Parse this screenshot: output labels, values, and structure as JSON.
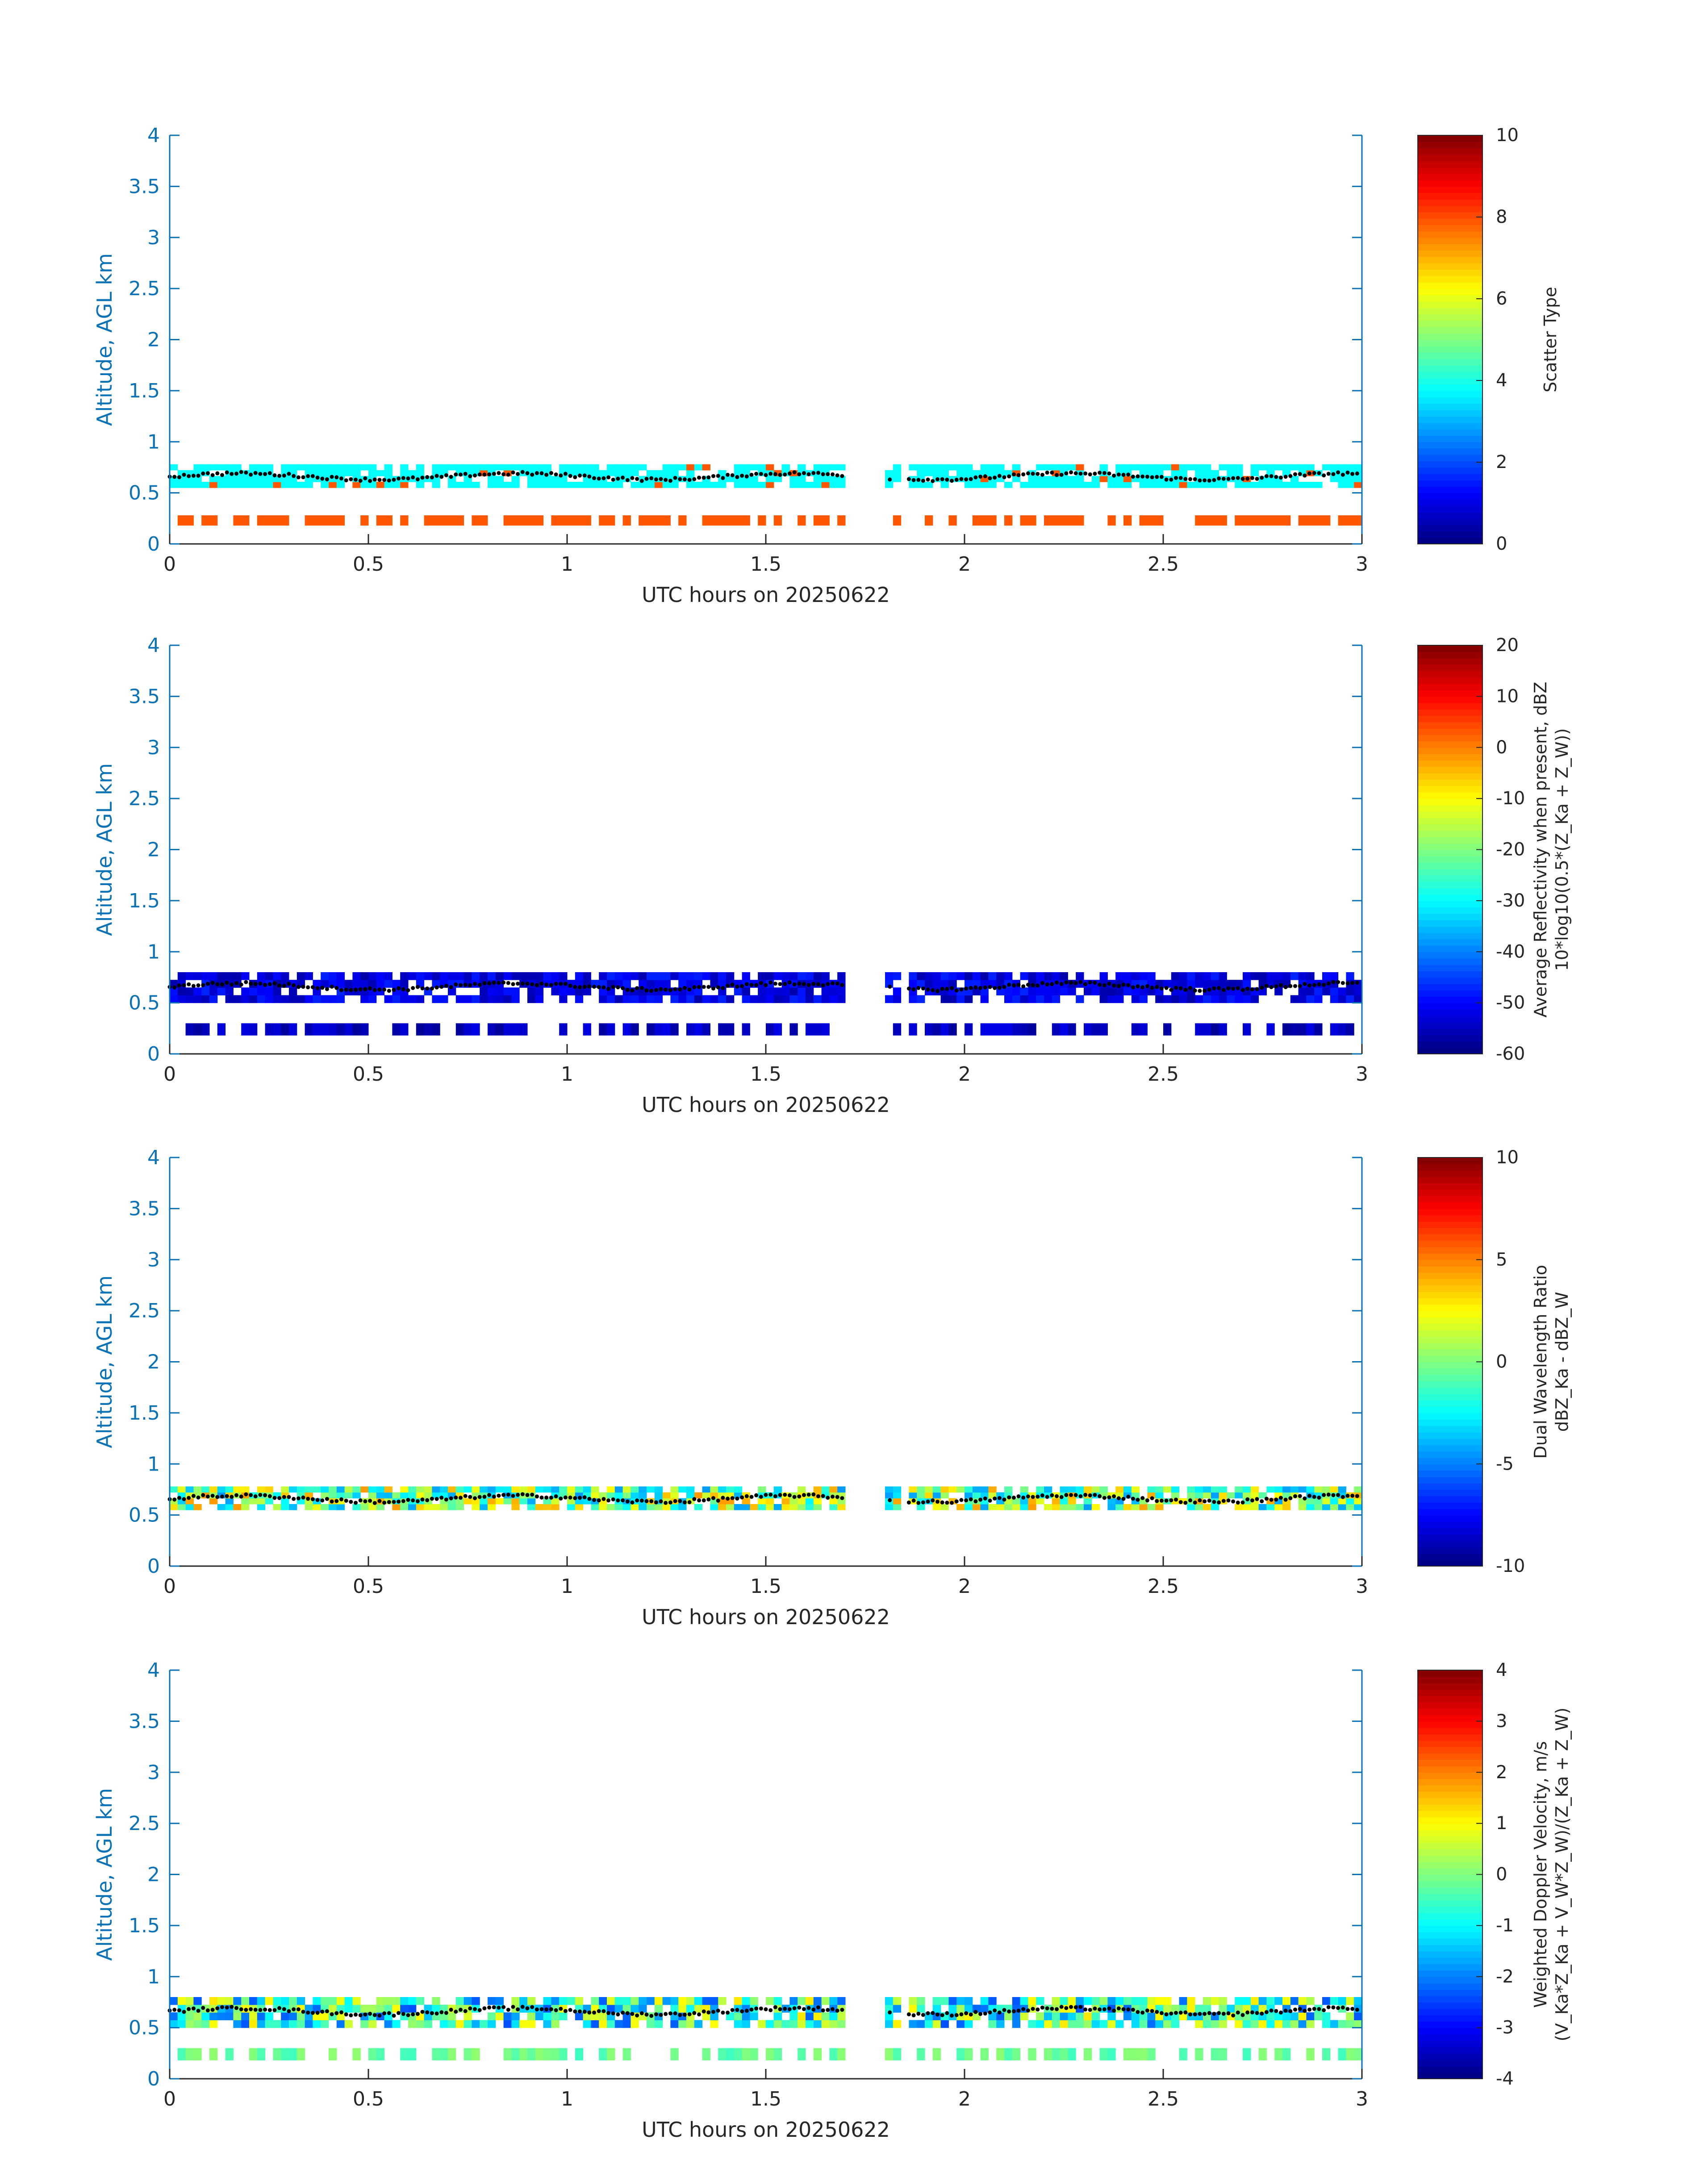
{
  "chart_data": [
    {
      "type": "heatmap",
      "ylabel": "Altitude, AGL km",
      "xlabel": "UTC hours on 20250622",
      "xlim": [
        0,
        3
      ],
      "ylim": [
        0,
        4
      ],
      "x_ticks": [
        "0",
        "0.5",
        "1",
        "1.5",
        "2",
        "2.5",
        "3"
      ],
      "y_ticks": [
        "0",
        "0.5",
        "1",
        "1.5",
        "2",
        "2.5",
        "3",
        "3.5",
        "4"
      ],
      "colorbar": {
        "label_lines": [
          "Scatter Type"
        ],
        "range": [
          0,
          10
        ],
        "ticks": [
          "0",
          "2",
          "4",
          "6",
          "8",
          "10"
        ]
      },
      "cloud_layer": {
        "base_km": 0.55,
        "top_km": 0.78,
        "value": 3.8
      },
      "surface_layer": {
        "base_km": 0.18,
        "top_km": 0.28,
        "value": 7.9
      },
      "dotted_line_km": 0.66,
      "gap_hours": [
        1.7,
        1.85
      ]
    },
    {
      "type": "heatmap",
      "ylabel": "Altitude, AGL km",
      "xlabel": "UTC hours on 20250622",
      "xlim": [
        0,
        3
      ],
      "ylim": [
        0,
        4
      ],
      "x_ticks": [
        "0",
        "0.5",
        "1",
        "1.5",
        "2",
        "2.5",
        "3"
      ],
      "y_ticks": [
        "0",
        "0.5",
        "1",
        "1.5",
        "2",
        "2.5",
        "3",
        "3.5",
        "4"
      ],
      "colorbar": {
        "label_lines": [
          "Average Reflectivity when present, dBZ",
          "10*log10(0.5*(Z_Ka + Z_W))"
        ],
        "range": [
          -60,
          20
        ],
        "ticks": [
          "-60",
          "-50",
          "-40",
          "-30",
          "-20",
          "-10",
          "0",
          "10",
          "20"
        ]
      },
      "cloud_layer": {
        "base_km": 0.5,
        "top_km": 0.8,
        "value": -52
      },
      "surface_layer": {
        "base_km": 0.18,
        "top_km": 0.3,
        "value": -55
      },
      "dotted_line_km": 0.66,
      "gap_hours": [
        1.7,
        1.85
      ]
    },
    {
      "type": "heatmap",
      "ylabel": "Altitude, AGL km",
      "xlabel": "UTC hours on 20250622",
      "xlim": [
        0,
        3
      ],
      "ylim": [
        0,
        4
      ],
      "x_ticks": [
        "0",
        "0.5",
        "1",
        "1.5",
        "2",
        "2.5",
        "3"
      ],
      "y_ticks": [
        "0",
        "0.5",
        "1",
        "1.5",
        "2",
        "2.5",
        "3",
        "3.5",
        "4"
      ],
      "colorbar": {
        "label_lines": [
          "Dual Wavelength Ratio",
          "dBZ_Ka - dBZ_W"
        ],
        "range": [
          -10,
          10
        ],
        "ticks": [
          "-10",
          "-5",
          "0",
          "5",
          "10"
        ]
      },
      "cloud_layer": {
        "base_km": 0.55,
        "top_km": 0.78,
        "value": 0
      },
      "surface_layer": null,
      "dotted_line_km": 0.66,
      "gap_hours": [
        1.7,
        1.85
      ]
    },
    {
      "type": "heatmap",
      "ylabel": "Altitude, AGL km",
      "xlabel": "UTC hours on 20250622",
      "xlim": [
        0,
        3
      ],
      "ylim": [
        0,
        4
      ],
      "x_ticks": [
        "0",
        "0.5",
        "1",
        "1.5",
        "2",
        "2.5",
        "3"
      ],
      "y_ticks": [
        "0",
        "0.5",
        "1",
        "1.5",
        "2",
        "2.5",
        "3",
        "3.5",
        "4"
      ],
      "colorbar": {
        "label_lines": [
          "Weighted Doppler Velocity, m/s",
          "(V_Ka*Z_Ka + V_W*Z_W)/(Z_Ka + Z_W)"
        ],
        "range": [
          -4,
          4
        ],
        "ticks": [
          "-4",
          "-3",
          "-2",
          "-1",
          "0",
          "1",
          "2",
          "3",
          "4"
        ]
      },
      "cloud_layer": {
        "base_km": 0.5,
        "top_km": 0.8,
        "value": -0.6
      },
      "surface_layer": {
        "base_km": 0.18,
        "top_km": 0.3,
        "value": -0.2
      },
      "dotted_line_km": 0.66,
      "gap_hours": [
        1.7,
        1.85
      ]
    }
  ]
}
